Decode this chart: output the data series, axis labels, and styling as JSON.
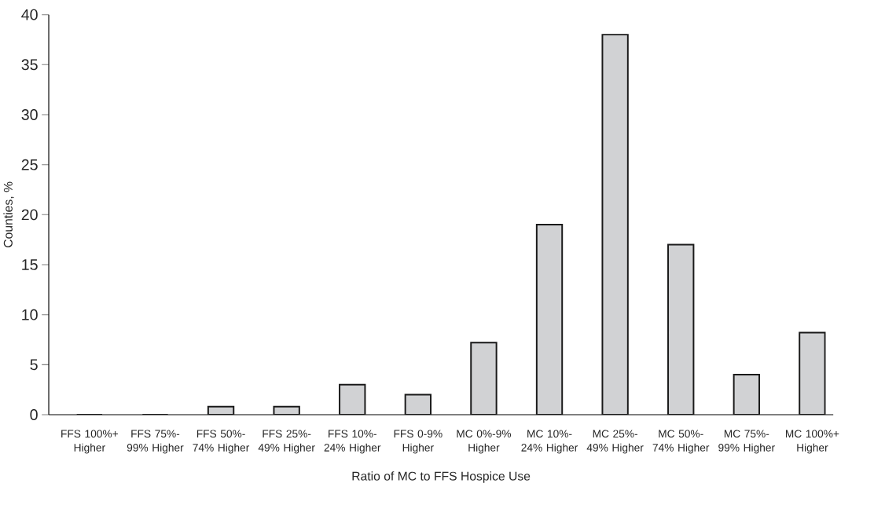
{
  "chart_data": {
    "type": "bar",
    "xlabel": "Ratio of MC to FFS Hospice Use",
    "ylabel": "Counties, %",
    "categories": [
      "FFS 100%+ Higher",
      "FFS 75%-99% Higher",
      "FFS 50%-74% Higher",
      "FFS 25%-49% Higher",
      "FFS 10%-24% Higher",
      "FFS 0-9% Higher",
      "MC 0%-9% Higher",
      "MC 10%-24% Higher",
      "MC 25%-49% Higher",
      "MC 50%-74% Higher",
      "MC 75%-99% Higher",
      "MC 100%+ Higher"
    ],
    "values": [
      0,
      0,
      0.8,
      0.8,
      3,
      2,
      7.2,
      19,
      38,
      17,
      4,
      8.2
    ],
    "color": "#d1d2d4",
    "ylim": [
      0,
      40
    ],
    "yticks": [
      0,
      5,
      10,
      15,
      20,
      25,
      30,
      35,
      40
    ]
  }
}
